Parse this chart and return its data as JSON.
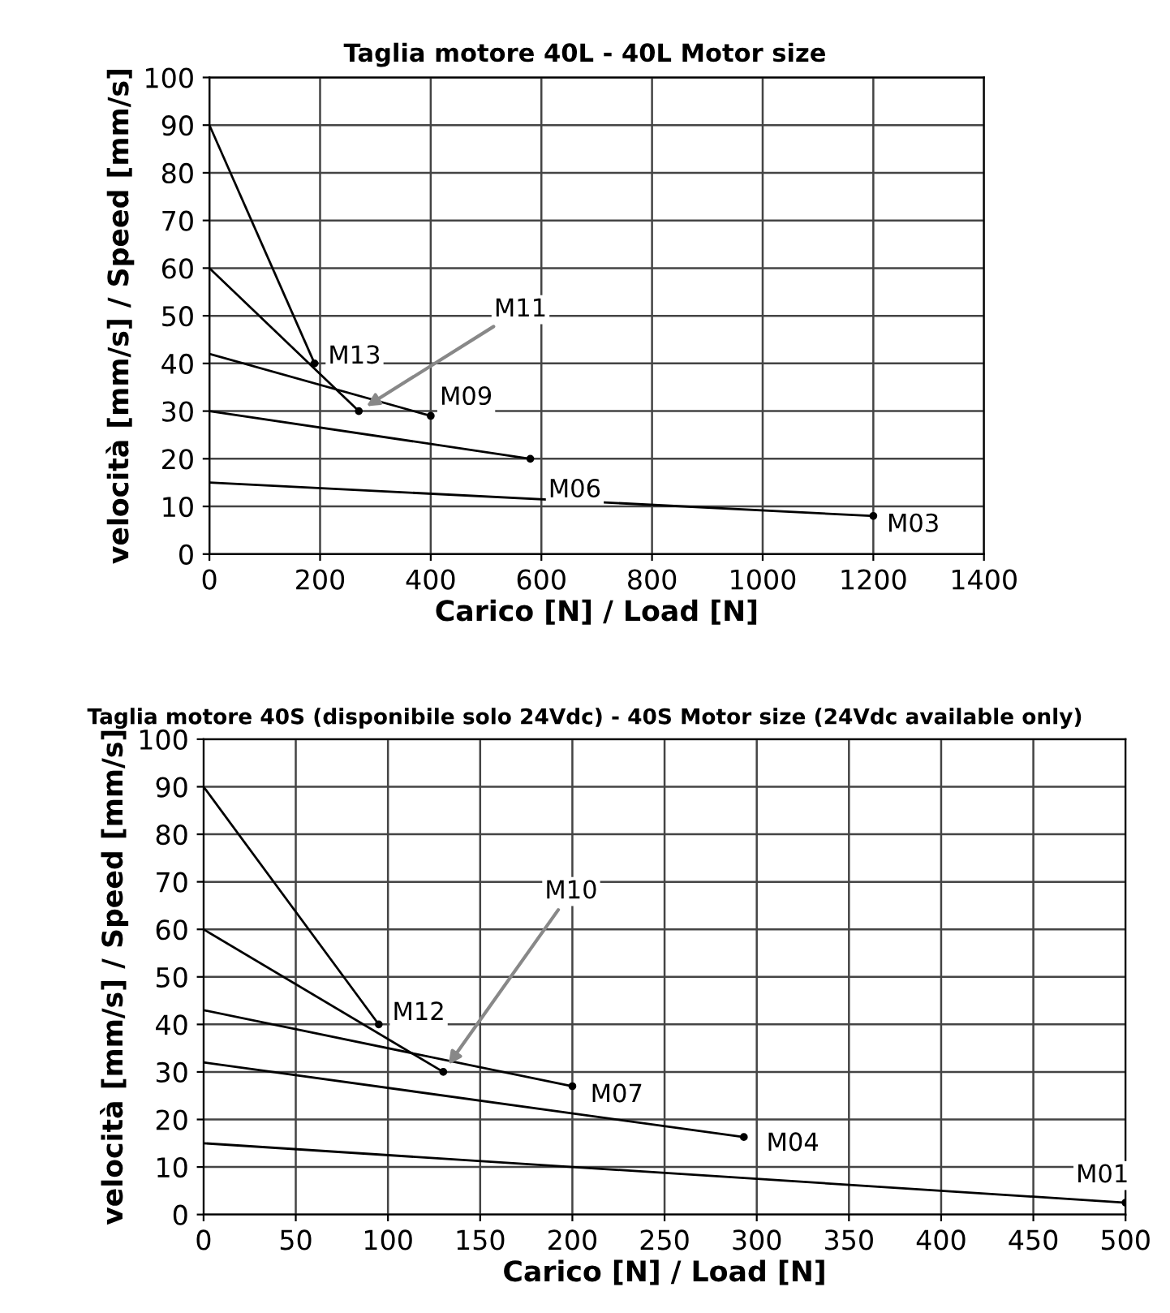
{
  "chart_data": [
    {
      "type": "line",
      "title": "Taglia motore 40L - 40L Motor size",
      "xlabel": "Carico [N] / Load [N]",
      "ylabel": "velocità [mm/s] / Speed [mm/s]",
      "series": [
        {
          "color": "#000000",
          "x": [
            0,
            190
          ],
          "values": [
            90,
            40
          ]
        },
        {
          "color": "#000000",
          "x": [
            0,
            270
          ],
          "values": [
            60,
            30
          ]
        },
        {
          "color": "#000000",
          "x": [
            0,
            400
          ],
          "values": [
            42,
            29
          ]
        },
        {
          "color": "#000000",
          "x": [
            0,
            580
          ],
          "values": [
            30,
            20
          ]
        },
        {
          "color": "#000000",
          "x": [
            0,
            1200
          ],
          "values": [
            15,
            8
          ]
        }
      ],
      "annotations": [
        {
          "text": "M13",
          "x": 190,
          "y": 40
        },
        {
          "text": "M11",
          "x": 270,
          "y": 30
        },
        {
          "text": "M09",
          "x": 400,
          "y": 29
        },
        {
          "text": "M06",
          "x": 580,
          "y": 20
        },
        {
          "text": "M03",
          "x": 1200,
          "y": 8
        }
      ],
      "xlim": [
        0,
        1400
      ],
      "xticks": [
        0,
        200,
        400,
        600,
        800,
        1000,
        1200,
        1400
      ],
      "ylim": [
        0,
        100
      ],
      "yticks": [
        0,
        10,
        20,
        30,
        40,
        50,
        60,
        70,
        80,
        90,
        100
      ],
      "grid": true,
      "marker": "circle",
      "line_style": "solid"
    },
    {
      "type": "line",
      "title": "Taglia motore 40S (disponibile solo 24Vdc) - 40S Motor size (24Vdc available only)",
      "xlabel": "Carico [N] / Load [N]",
      "ylabel": "velocità [mm/s] / Speed [mm/s]",
      "series": [
        {
          "color": "#000000",
          "x": [
            0,
            95
          ],
          "values": [
            90,
            40
          ]
        },
        {
          "color": "#000000",
          "x": [
            0,
            130
          ],
          "values": [
            60,
            30
          ]
        },
        {
          "color": "#000000",
          "x": [
            0,
            200
          ],
          "values": [
            43,
            27
          ]
        },
        {
          "color": "#000000",
          "x": [
            0,
            293
          ],
          "values": [
            32,
            16.3
          ]
        },
        {
          "color": "#000000",
          "x": [
            0,
            500
          ],
          "values": [
            15,
            2.5
          ]
        }
      ],
      "annotations": [
        {
          "text": "M12",
          "x": 95,
          "y": 40
        },
        {
          "text": "M10",
          "x": 130,
          "y": 30
        },
        {
          "text": "M07",
          "x": 200,
          "y": 27
        },
        {
          "text": "M04",
          "x": 293,
          "y": 16.3
        },
        {
          "text": "M01",
          "x": 500,
          "y": 2.5
        }
      ],
      "xlim": [
        0,
        500
      ],
      "xticks": [
        0,
        50,
        100,
        150,
        200,
        250,
        300,
        350,
        400,
        450,
        500
      ],
      "ylim": [
        0,
        100
      ],
      "yticks": [
        0,
        10,
        20,
        30,
        40,
        50,
        60,
        70,
        80,
        90,
        100
      ],
      "grid": true,
      "marker": "circle",
      "line_style": "solid"
    }
  ]
}
